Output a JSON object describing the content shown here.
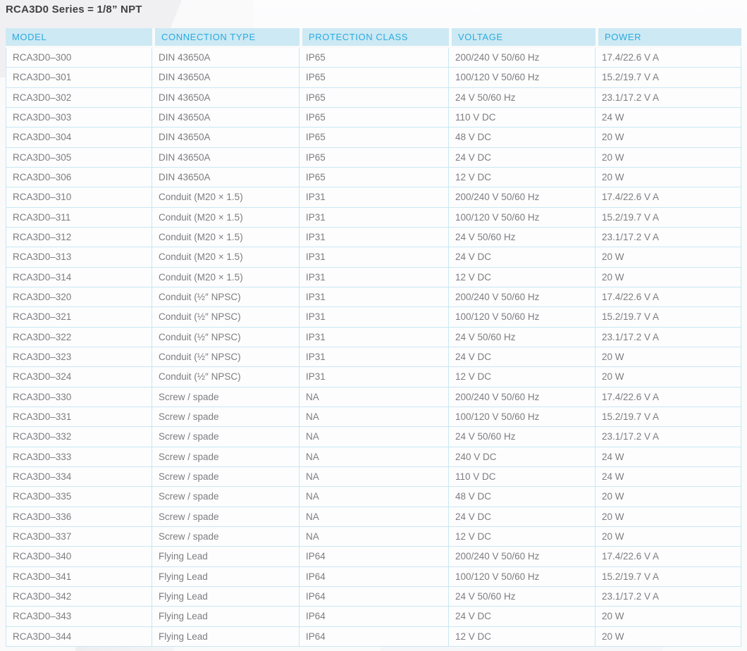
{
  "title": "RCA3D0 Series = 1/8” NPT",
  "colors": {
    "page-bg": "#fafafb",
    "header-bg": "#cde9f4",
    "header-text": "#2baade",
    "body-text": "#7d7d80",
    "line": "#c9e7f1",
    "title-text": "#414144"
  },
  "table": {
    "headers": [
      "MODEL",
      "CONNECTION TYPE",
      "PROTECTION CLASS",
      "VOLTAGE",
      "POWER"
    ],
    "rows": [
      {
        "model": "RCA3D0–300",
        "connection_type": "DIN 43650A",
        "protection_class": "IP65",
        "voltage": "200/240 V 50/60 Hz",
        "power": "17.4/22.6 V A"
      },
      {
        "model": "RCA3D0–301",
        "connection_type": "DIN 43650A",
        "protection_class": "IP65",
        "voltage": "100/120 V 50/60 Hz",
        "power": "15.2/19.7 V A"
      },
      {
        "model": "RCA3D0–302",
        "connection_type": "DIN 43650A",
        "protection_class": "IP65",
        "voltage": "24 V 50/60 Hz",
        "power": "23.1/17.2 V A"
      },
      {
        "model": "RCA3D0–303",
        "connection_type": "DIN 43650A",
        "protection_class": "IP65",
        "voltage": "110 V DC",
        "power": "24 W"
      },
      {
        "model": "RCA3D0–304",
        "connection_type": "DIN 43650A",
        "protection_class": "IP65",
        "voltage": "48 V DC",
        "power": "20 W"
      },
      {
        "model": "RCA3D0–305",
        "connection_type": "DIN 43650A",
        "protection_class": "IP65",
        "voltage": "24 V DC",
        "power": "20 W"
      },
      {
        "model": "RCA3D0–306",
        "connection_type": "DIN 43650A",
        "protection_class": "IP65",
        "voltage": "12 V DC",
        "power": "20 W"
      },
      {
        "model": "RCA3D0–310",
        "connection_type": "Conduit (M20 × 1.5)",
        "protection_class": "IP31",
        "voltage": "200/240 V 50/60 Hz",
        "power": "17.4/22.6 V A"
      },
      {
        "model": "RCA3D0–311",
        "connection_type": "Conduit (M20 × 1.5)",
        "protection_class": "IP31",
        "voltage": "100/120 V 50/60 Hz",
        "power": "15.2/19.7 V A"
      },
      {
        "model": "RCA3D0–312",
        "connection_type": "Conduit (M20 × 1.5)",
        "protection_class": "IP31",
        "voltage": "24 V 50/60 Hz",
        "power": "23.1/17.2 V A"
      },
      {
        "model": "RCA3D0–313",
        "connection_type": "Conduit (M20 × 1.5)",
        "protection_class": "IP31",
        "voltage": "24 V DC",
        "power": "20 W"
      },
      {
        "model": "RCA3D0–314",
        "connection_type": "Conduit (M20 × 1.5)",
        "protection_class": "IP31",
        "voltage": "12 V DC",
        "power": "20 W"
      },
      {
        "model": "RCA3D0–320",
        "connection_type": "Conduit (½″ NPSC)",
        "protection_class": "IP31",
        "voltage": "200/240 V 50/60 Hz",
        "power": "17.4/22.6 V A"
      },
      {
        "model": "RCA3D0–321",
        "connection_type": "Conduit (½″ NPSC)",
        "protection_class": "IP31",
        "voltage": "100/120 V 50/60 Hz",
        "power": "15.2/19.7 V A"
      },
      {
        "model": "RCA3D0–322",
        "connection_type": "Conduit (½″ NPSC)",
        "protection_class": "IP31",
        "voltage": "24 V 50/60 Hz",
        "power": "23.1/17.2 V A"
      },
      {
        "model": "RCA3D0–323",
        "connection_type": "Conduit (½″ NPSC)",
        "protection_class": "IP31",
        "voltage": "24 V DC",
        "power": "20 W"
      },
      {
        "model": "RCA3D0–324",
        "connection_type": "Conduit (½″ NPSC)",
        "protection_class": "IP31",
        "voltage": "12 V DC",
        "power": "20 W"
      },
      {
        "model": "RCA3D0–330",
        "connection_type": "Screw / spade",
        "protection_class": "NA",
        "voltage": "200/240 V 50/60 Hz",
        "power": "17.4/22.6 V A"
      },
      {
        "model": "RCA3D0–331",
        "connection_type": "Screw / spade",
        "protection_class": "NA",
        "voltage": "100/120 V 50/60 Hz",
        "power": "15.2/19.7 V A"
      },
      {
        "model": "RCA3D0–332",
        "connection_type": "Screw / spade",
        "protection_class": "NA",
        "voltage": "24 V 50/60 Hz",
        "power": "23.1/17.2 V A"
      },
      {
        "model": "RCA3D0–333",
        "connection_type": "Screw / spade",
        "protection_class": "NA",
        "voltage": "240 V DC",
        "power": "24 W"
      },
      {
        "model": "RCA3D0–334",
        "connection_type": "Screw / spade",
        "protection_class": "NA",
        "voltage": "110 V DC",
        "power": "24 W"
      },
      {
        "model": "RCA3D0–335",
        "connection_type": "Screw / spade",
        "protection_class": "NA",
        "voltage": "48 V DC",
        "power": "20 W"
      },
      {
        "model": "RCA3D0–336",
        "connection_type": "Screw / spade",
        "protection_class": "NA",
        "voltage": "24 V DC",
        "power": "20 W"
      },
      {
        "model": "RCA3D0–337",
        "connection_type": "Screw / spade",
        "protection_class": "NA",
        "voltage": "12 V DC",
        "power": "20 W"
      },
      {
        "model": "RCA3D0–340",
        "connection_type": "Flying Lead",
        "protection_class": "IP64",
        "voltage": "200/240 V 50/60 Hz",
        "power": "17.4/22.6 V A"
      },
      {
        "model": "RCA3D0–341",
        "connection_type": "Flying Lead",
        "protection_class": "IP64",
        "voltage": "100/120 V 50/60 Hz",
        "power": "15.2/19.7 V A"
      },
      {
        "model": "RCA3D0–342",
        "connection_type": "Flying Lead",
        "protection_class": "IP64",
        "voltage": "24 V 50/60 Hz",
        "power": "23.1/17.2 V A"
      },
      {
        "model": "RCA3D0–343",
        "connection_type": "Flying Lead",
        "protection_class": "IP64",
        "voltage": "24 V DC",
        "power": "20 W"
      },
      {
        "model": "RCA3D0–344",
        "connection_type": "Flying Lead",
        "protection_class": "IP64",
        "voltage": "12 V DC",
        "power": "20 W"
      }
    ]
  }
}
